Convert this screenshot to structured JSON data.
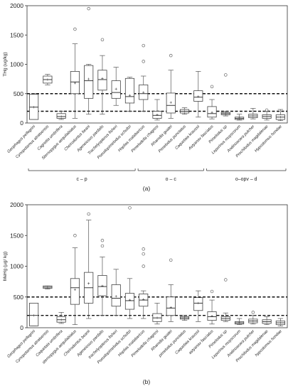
{
  "chart_data": [
    {
      "type": "boxplot",
      "panel_label": "(a)",
      "ylabel": "THg (ug/kg)",
      "ylim": [
        0,
        2000
      ],
      "yticks": [
        0,
        500,
        1000,
        1500,
        2000
      ],
      "grid": false,
      "thresholds": [
        {
          "value": 500,
          "style": "dashed"
        },
        {
          "value": 200,
          "style": "dashed"
        }
      ],
      "categories": [
        "Geophagus pellegrini",
        "Cynopotamus atratoensis",
        "Cagnetia umbrifera",
        "Sternopygus aequilabiatus",
        "Cheirodontus beani",
        "Ageneiosus pardalis",
        "Trachelyopterus fisheri",
        "Pseudopimelodus schultzi",
        "Hoplias malabaricus",
        "Pimelodella chagresi",
        "Rhamdia guatei",
        "Pimelodus punctatus",
        "Caquetaia kraussii",
        "Astyanax fasciatus",
        "Pimelodus sp",
        "Leporinus muyscorum",
        "Andinoacara pulcher",
        "Prochilodus magdalenae",
        "Hypostomus hondae"
      ],
      "boxes": [
        {
          "min": 60,
          "q1": 60,
          "median": 270,
          "q3": 490,
          "max": 500,
          "mean": 270,
          "outliers": []
        },
        {
          "min": 650,
          "q1": 680,
          "median": 740,
          "q3": 800,
          "max": 830,
          "mean": 740,
          "outliers": []
        },
        {
          "min": 60,
          "q1": 80,
          "median": 110,
          "q3": 160,
          "max": 200,
          "mean": 110,
          "outliers": []
        },
        {
          "min": 80,
          "q1": 500,
          "median": 700,
          "q3": 880,
          "max": 1350,
          "mean": 680,
          "outliers": [
            1600
          ]
        },
        {
          "min": 150,
          "q1": 420,
          "median": 720,
          "q3": 980,
          "max": 1000,
          "mean": 750,
          "outliers": [
            1950
          ]
        },
        {
          "min": 150,
          "q1": 560,
          "median": 740,
          "q3": 900,
          "max": 1150,
          "mean": 760,
          "outliers": [
            1420
          ]
        },
        {
          "min": 300,
          "q1": 420,
          "median": 520,
          "q3": 720,
          "max": 950,
          "mean": 580,
          "outliers": []
        },
        {
          "min": 200,
          "q1": 340,
          "median": 450,
          "q3": 760,
          "max": 780,
          "mean": 470,
          "outliers": []
        },
        {
          "min": 200,
          "q1": 400,
          "median": 500,
          "q3": 650,
          "max": 800,
          "mean": 520,
          "outliers": [
            1050,
            1320
          ]
        },
        {
          "min": 50,
          "q1": 80,
          "median": 130,
          "q3": 200,
          "max": 400,
          "mean": 140,
          "outliers": []
        },
        {
          "min": 80,
          "q1": 170,
          "median": 300,
          "q3": 510,
          "max": 900,
          "mean": 350,
          "outliers": [
            1150
          ]
        },
        {
          "min": 150,
          "q1": 170,
          "median": 200,
          "q3": 230,
          "max": 260,
          "mean": 200,
          "outliers": []
        },
        {
          "min": 100,
          "q1": 370,
          "median": 440,
          "q3": 550,
          "max": 880,
          "mean": 450,
          "outliers": []
        },
        {
          "min": 70,
          "q1": 100,
          "median": 160,
          "q3": 280,
          "max": 400,
          "mean": 180,
          "outliers": [
            620
          ]
        },
        {
          "min": 120,
          "q1": 140,
          "median": 160,
          "q3": 180,
          "max": 200,
          "mean": 160,
          "outliers": [
            820
          ]
        },
        {
          "min": 50,
          "q1": 60,
          "median": 80,
          "q3": 100,
          "max": 150,
          "mean": 85,
          "outliers": []
        },
        {
          "min": 70,
          "q1": 90,
          "median": 120,
          "q3": 150,
          "max": 250,
          "mean": 120,
          "outliers": []
        },
        {
          "min": 50,
          "q1": 80,
          "median": 110,
          "q3": 140,
          "max": 200,
          "mean": 110,
          "outliers": [
            220
          ]
        },
        {
          "min": 40,
          "q1": 60,
          "median": 100,
          "q3": 140,
          "max": 230,
          "mean": 100,
          "outliers": []
        }
      ],
      "groups": [
        {
          "label": "c – p",
          "from": 0,
          "to": 7
        },
        {
          "label": "o – c",
          "from": 8,
          "to": 12
        },
        {
          "label": "o–opv – d",
          "from": 13,
          "to": 18
        }
      ]
    },
    {
      "type": "boxplot",
      "panel_label": "(b)",
      "ylabel": "MeHg (µg/ kg)",
      "ylim": [
        0,
        2000
      ],
      "yticks": [
        0,
        500,
        1000,
        1500,
        2000
      ],
      "grid": false,
      "thresholds": [
        {
          "value": 500,
          "style": "dashed"
        },
        {
          "value": 200,
          "style": "dashed"
        }
      ],
      "categories": [
        "Geophagus pellegrini",
        "Cynopotamus atratoensis",
        "Caquetaia umbrifera",
        "sternopygus aequilabiatus",
        "Cheirodontus beanii",
        "Ageneiosus pardalis",
        "trachelyopterus fisheri",
        "Pseudopimelodus schultzi",
        "Hoplias malabaricus",
        "Pimelodella chagresi",
        "Rhamdia guatei",
        "pimelodus punctatus",
        "Caquetaia kraussii",
        "astyanax fasciatus",
        "Pimelodus sp",
        "Leporinus muyscorum",
        "Andinoacara pulcher",
        "Prochilodus magdalenae",
        "hypostomus hondae"
      ],
      "boxes": [
        {
          "min": 30,
          "q1": 30,
          "median": 200,
          "q3": 400,
          "max": 400,
          "mean": 200,
          "outliers": []
        },
        {
          "min": 630,
          "q1": 640,
          "median": 660,
          "q3": 680,
          "max": 680,
          "mean": 660,
          "outliers": []
        },
        {
          "min": 70,
          "q1": 90,
          "median": 130,
          "q3": 180,
          "max": 250,
          "mean": 130,
          "outliers": []
        },
        {
          "min": 50,
          "q1": 380,
          "median": 650,
          "q3": 800,
          "max": 1300,
          "mean": 620,
          "outliers": [
            1500
          ]
        },
        {
          "min": 150,
          "q1": 400,
          "median": 650,
          "q3": 900,
          "max": 1750,
          "mean": 720,
          "outliers": [
            1850
          ]
        },
        {
          "min": 200,
          "q1": 520,
          "median": 670,
          "q3": 850,
          "max": 1150,
          "mean": 680,
          "outliers": [
            1330,
            1420
          ]
        },
        {
          "min": 200,
          "q1": 350,
          "median": 480,
          "q3": 700,
          "max": 950,
          "mean": 510,
          "outliers": []
        },
        {
          "min": 150,
          "q1": 300,
          "median": 440,
          "q3": 560,
          "max": 800,
          "mean": 450,
          "outliers": [
            1950
          ]
        },
        {
          "min": 150,
          "q1": 350,
          "median": 450,
          "q3": 550,
          "max": 600,
          "mean": 460,
          "outliers": [
            1000,
            1200,
            1280
          ]
        },
        {
          "min": 60,
          "q1": 100,
          "median": 160,
          "q3": 230,
          "max": 400,
          "mean": 160,
          "outliers": []
        },
        {
          "min": 100,
          "q1": 200,
          "median": 320,
          "q3": 500,
          "max": 700,
          "mean": 330,
          "outliers": [
            1100
          ]
        },
        {
          "min": 120,
          "q1": 140,
          "median": 160,
          "q3": 180,
          "max": 200,
          "mean": 160,
          "outliers": []
        },
        {
          "min": 100,
          "q1": 280,
          "median": 400,
          "q3": 490,
          "max": 600,
          "mean": 400,
          "outliers": []
        },
        {
          "min": 60,
          "q1": 120,
          "median": 180,
          "q3": 260,
          "max": 450,
          "mean": 190,
          "outliers": [
            590
          ]
        },
        {
          "min": 100,
          "q1": 120,
          "median": 150,
          "q3": 180,
          "max": 240,
          "mean": 150,
          "outliers": [
            780
          ]
        },
        {
          "min": 50,
          "q1": 60,
          "median": 80,
          "q3": 100,
          "max": 150,
          "mean": 85,
          "outliers": []
        },
        {
          "min": 60,
          "q1": 80,
          "median": 110,
          "q3": 140,
          "max": 200,
          "mean": 110,
          "outliers": [
            250
          ]
        },
        {
          "min": 50,
          "q1": 70,
          "median": 100,
          "q3": 130,
          "max": 180,
          "mean": 100,
          "outliers": []
        },
        {
          "min": 30,
          "q1": 50,
          "median": 80,
          "q3": 110,
          "max": 150,
          "mean": 80,
          "outliers": []
        }
      ],
      "groups": []
    }
  ]
}
